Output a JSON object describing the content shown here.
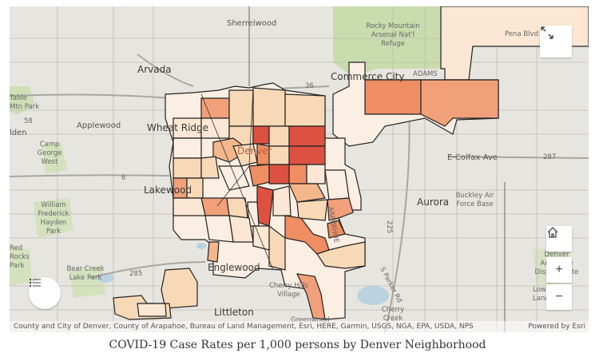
{
  "caption": "COVID-19 Case Rates per 1,000 persons by Denver Neighborhood",
  "attribution": {
    "sources": "County and City of Denver, County of Arapahoe, Bureau of Land Management, Esri, HERE, Garmin, USGS, NGA, EPA, USDA, NPS",
    "powered_by": "Powered by Esri"
  },
  "basemap_labels": {
    "sherrelwood": "Sherrelwood",
    "rocky_mountain_arsenal": "Rocky Mountain Arsenal Nat'l Refuge",
    "arvada": "Arvada",
    "commerce_city": "Commerce City",
    "adams": "ADAMS",
    "table_mountain_park": "Table Mtn Park",
    "applewood": "Applewood",
    "wheat_ridge": "Wheat Ridge",
    "camp_george_west": "Camp George West",
    "denver": "Denver",
    "lakewood": "Lakewood",
    "aurora": "Aurora",
    "e_colfax": "E-Colfax-Ave",
    "buckley": "Buckley Air Force Base",
    "william_frederick_hayden_park": "William Frederick Hayden Park",
    "arapahoe": "ARAPAHOE",
    "red_rocks_park": "Red Rocks Park",
    "bear_creek_lake_park": "Bear Creek Lake Park",
    "englewood": "Englewood",
    "cherry_hills_village": "Cherry Hills Village",
    "cherry_creek": "Cherry Creek",
    "littleton": "Littleton",
    "greenwood": "Greenwood",
    "denver_arapahoe_disposal": "Denver Arapahoe Disposal Site",
    "lowry_landfill": "Lowry Landfill",
    "pena_blvd": "Pena Blvd",
    "route_36": "36",
    "route_6": "6",
    "route_287": "287",
    "route_225": "225",
    "route_285": "285",
    "route_58": "58",
    "s_parker_rd": "S Parker Rd",
    "golden": "lden"
  },
  "controls": {
    "expand_icon": "expand-arrows-icon",
    "home_icon": "home-icon",
    "zoom_in": "+",
    "zoom_out": "−",
    "legend_icon": "list-icon"
  },
  "choropleth_colors": [
    "#fbeee2",
    "#f8d9b7",
    "#f4b78b",
    "#ee8e62",
    "#dc5142"
  ]
}
